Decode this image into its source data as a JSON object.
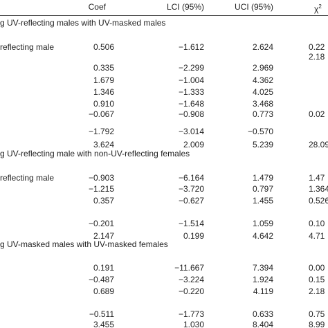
{
  "header": {
    "columns": [
      "Coef",
      "LCI (95%)",
      "UCI (95%)",
      "χ"
    ],
    "chi_sup": "2"
  },
  "sections": [
    {
      "title": "g UV-reflecting males with UV-masked males",
      "rows": [
        [
          "reflecting male",
          "0.506",
          "−1.612",
          "2.624",
          "0.22"
        ],
        [
          null,
          null,
          null,
          null,
          "2.18"
        ],
        [
          null,
          "0.335",
          "−2.299",
          "2.969",
          null
        ],
        [
          null,
          "1.679",
          "−1.004",
          "4.362",
          null
        ],
        [
          null,
          "1.346",
          "−1.333",
          "4.025",
          null
        ],
        [
          null,
          "0.910",
          "−1.648",
          "3.468",
          null
        ],
        [
          null,
          "−0.067",
          "−0.908",
          "0.773",
          "0.02"
        ],
        [
          null,
          "−1.792",
          "−3.014",
          "−0.570",
          null
        ],
        [
          null,
          "3.624",
          "2.009",
          "5.239",
          "28.09"
        ]
      ]
    },
    {
      "title": "g UV-reflecting male with non-UV-reflecting females",
      "rows": [
        [
          "reflecting male",
          "−0.903",
          "−6.164",
          "1.479",
          "1.47"
        ],
        [
          null,
          "−1.215",
          "−3.720",
          "0.797",
          "1.364"
        ],
        [
          null,
          "0.357",
          "−0.627",
          "1.455",
          "0.526"
        ],
        [
          null,
          "−0.201",
          "−1.514",
          "1.059",
          "0.10"
        ],
        [
          null,
          "2.147",
          "0.199",
          "4.642",
          "4.71"
        ]
      ]
    },
    {
      "title": "g UV-masked males with UV-masked females",
      "rows": [
        [
          null,
          "0.191",
          "−11.667",
          "7.394",
          "0.00"
        ],
        [
          null,
          "−0.487",
          "−3.224",
          "1.924",
          "0.15"
        ],
        [
          null,
          "0.689",
          "−0.220",
          "4.119",
          "2.18"
        ],
        [
          null,
          "−0.511",
          "−1.773",
          "0.633",
          "0.75"
        ],
        [
          null,
          "3.455",
          "1.030",
          "8.404",
          "8.99"
        ]
      ]
    }
  ]
}
